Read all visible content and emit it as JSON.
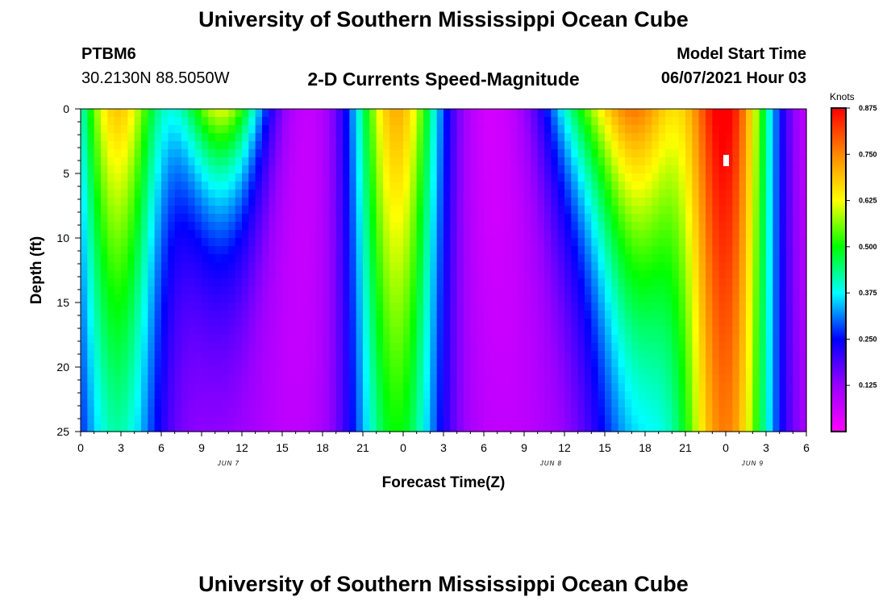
{
  "header": {
    "title_top": "University of Southern Mississippi Ocean Cube",
    "title_bottom": "University of Southern Mississippi Ocean Cube",
    "station_id": "PTBM6",
    "station_coords": "30.2130N  88.5050W",
    "plot_title": "2-D Currents Speed-Magnitude",
    "model_start_label": "Model Start Time",
    "model_start_value": "06/07/2021 Hour 03"
  },
  "chart_data": {
    "type": "heatmap",
    "title": "2-D Currents Speed-Magnitude",
    "xlabel": "Forecast Time(Z)",
    "ylabel": "Depth (ft)",
    "x_tick_labels": [
      "0",
      "3",
      "6",
      "9",
      "12",
      "15",
      "18",
      "21",
      "0",
      "3",
      "6",
      "9",
      "12",
      "15",
      "18",
      "21",
      "0",
      "3",
      "6"
    ],
    "x_range_hours": [
      0,
      54
    ],
    "date_labels": [
      {
        "text": "JUN 7",
        "hour": 11
      },
      {
        "text": "JUN 8",
        "hour": 35
      },
      {
        "text": "JUN 9",
        "hour": 50
      }
    ],
    "y_tick_labels": [
      "0",
      "5",
      "10",
      "15",
      "20",
      "25"
    ],
    "y_range_ft": [
      0,
      25
    ],
    "colorbar": {
      "label": "Knots",
      "tick_labels": [
        "0.875",
        "0.750",
        "0.625",
        "0.500",
        "0.375",
        "0.250",
        "0.125"
      ],
      "range": [
        0,
        0.875
      ],
      "colors": [
        "#ff00ff",
        "#9900ff",
        "#0000ff",
        "#00ffff",
        "#00ff00",
        "#ffff00",
        "#ff8800",
        "#ff0000"
      ]
    },
    "speed_peaks": [
      {
        "hour": 2.7,
        "surface_knots": 0.65,
        "decay_depth_ft": 40
      },
      {
        "hour": 10.5,
        "surface_knots": 0.58,
        "decay_depth_ft": 11
      },
      {
        "hour": 23.5,
        "surface_knots": 0.68,
        "decay_depth_ft": 55
      },
      {
        "hour": 37.0,
        "surface_knots": 0.33,
        "decay_depth_ft": 12
      },
      {
        "hour": 41.5,
        "surface_knots": 0.64,
        "decay_depth_ft": 28
      },
      {
        "hour": 48.0,
        "surface_knots": 0.84,
        "decay_depth_ft": 120
      }
    ],
    "marker": {
      "hour": 48.0,
      "depth_ft": 4
    }
  }
}
